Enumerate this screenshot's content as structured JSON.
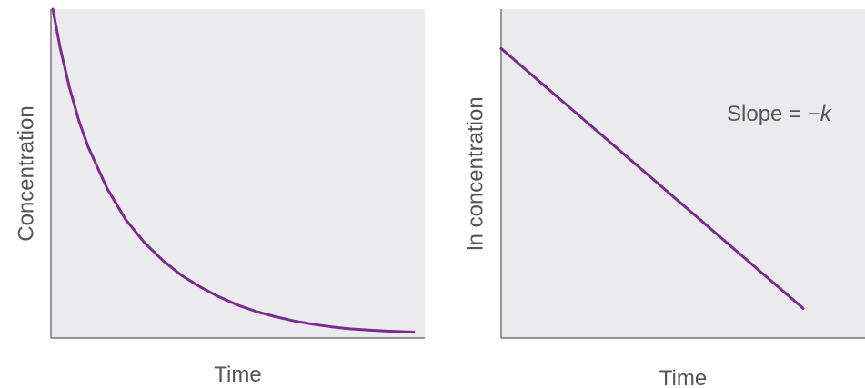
{
  "chart_data": [
    {
      "type": "line",
      "xlabel": "Time",
      "ylabel": "Concentration",
      "xlim": [
        0,
        10
      ],
      "ylim": [
        0,
        10
      ],
      "grid": false,
      "series": [
        {
          "color": "#7b2a8e",
          "x": [
            0.05,
            0.25,
            0.5,
            0.75,
            1.0,
            1.5,
            2.0,
            2.5,
            3.0,
            3.5,
            4.0,
            4.5,
            5.0,
            5.5,
            6.0,
            6.5,
            7.0,
            7.5,
            8.0,
            8.5,
            9.0,
            9.7
          ],
          "y": [
            10.0,
            8.8,
            7.6,
            6.6,
            5.8,
            4.55,
            3.6,
            2.9,
            2.35,
            1.9,
            1.55,
            1.25,
            1.0,
            0.8,
            0.65,
            0.52,
            0.42,
            0.34,
            0.28,
            0.24,
            0.21,
            0.18
          ]
        }
      ]
    },
    {
      "type": "line",
      "xlabel": "Time",
      "ylabel": "ln concentration",
      "xlim": [
        0,
        10
      ],
      "ylim": [
        0,
        10
      ],
      "grid": false,
      "annotation": {
        "text_prefix": "Slope = −",
        "text_k": "k",
        "at": [
          6.2,
          6.6
        ]
      },
      "series": [
        {
          "color": "#7b2a8e",
          "x": [
            0.0,
            8.3
          ],
          "y": [
            8.8,
            0.9
          ]
        }
      ]
    }
  ],
  "style": {
    "panel_bg": "#ebebed",
    "axis_color": "#777777",
    "line_color": "#7b2a8e",
    "text_color": "#555555"
  }
}
